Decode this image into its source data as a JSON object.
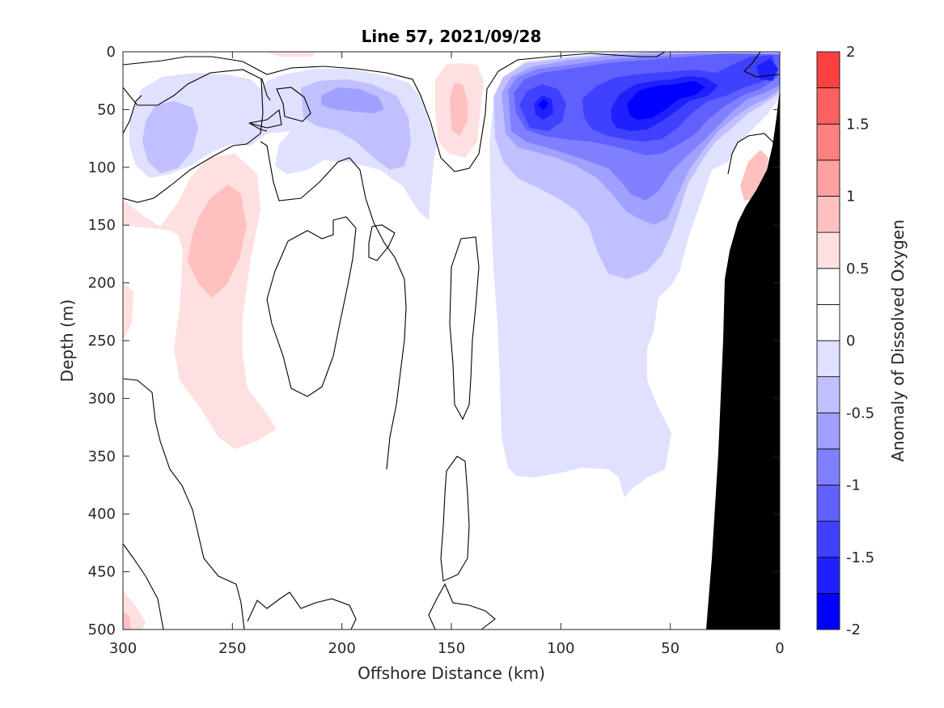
{
  "chart_data": {
    "type": "heatmap",
    "title": "Line 57, 2021/09/28",
    "xlabel": "Offshore Distance (km)",
    "ylabel": "Depth (m)",
    "xlim": [
      300,
      0
    ],
    "ylim": [
      0,
      500
    ],
    "x_reversed": true,
    "y_reversed": true,
    "x_ticks": [
      "300",
      "250",
      "200",
      "150",
      "100",
      "50",
      "0"
    ],
    "y_ticks": [
      "0",
      "50",
      "100",
      "150",
      "200",
      "250",
      "300",
      "350",
      "400",
      "450",
      "500"
    ],
    "colorbar": {
      "label": "Anomaly of Dissolved Oxygen",
      "range": [
        -2,
        2
      ],
      "tick_labels": [
        "2",
        "1.5",
        "1",
        "0.5",
        "0",
        "-0.5",
        "-1",
        "-1.5",
        "-2"
      ],
      "levels": [
        -2,
        -1.75,
        -1.5,
        -1.25,
        -1,
        -0.75,
        -0.5,
        -0.25,
        0,
        0.25,
        0.5,
        0.75,
        1,
        1.25,
        1.5,
        1.75,
        2
      ],
      "colors": [
        "#0000ff",
        "#2020ff",
        "#4040ff",
        "#6060ff",
        "#8080ff",
        "#a0a0ff",
        "#c0c0ff",
        "#e0e0ff",
        "#ffffff",
        "#ffffff",
        "#ffe0e0",
        "#ffc0c0",
        "#ffa0a0",
        "#ff8080",
        "#ff6060",
        "#ff4040",
        "#ff2020",
        "#ff0000"
      ]
    },
    "features": [
      {
        "name": "strong negative core",
        "x_km": [
          30,
          70
        ],
        "depth_m": [
          20,
          90
        ],
        "value": -1.75
      },
      {
        "name": "negative anomaly region",
        "x_km": [
          15,
          130
        ],
        "depth_m": [
          0,
          370
        ],
        "value": -0.5
      },
      {
        "name": "positive anomaly region",
        "x_km": [
          230,
          290
        ],
        "depth_m": [
          90,
          340
        ],
        "value": 0.5
      },
      {
        "name": "shelf bottom (land mask)",
        "x_km": [
          0,
          35
        ],
        "depth_m": [
          40,
          500
        ]
      }
    ]
  }
}
